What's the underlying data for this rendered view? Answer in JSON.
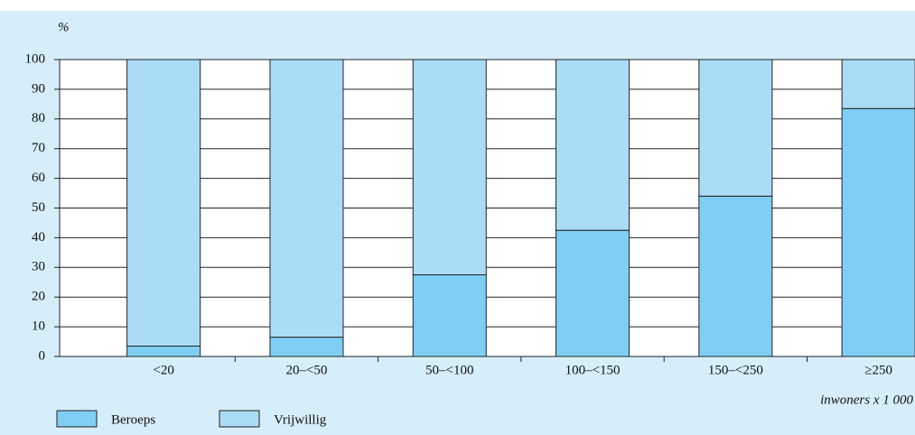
{
  "chart_data": {
    "type": "stacked_bar",
    "y_label": "%",
    "x_label": "inwoners x 1 000",
    "categories": [
      "<20",
      "20–<50",
      "50–<100",
      "100–<150",
      "150–<250",
      "≥250"
    ],
    "series": [
      {
        "name": "Beroeps",
        "color": "#7fcff5",
        "values": [
          3.5,
          6.5,
          27.5,
          42.5,
          54,
          83.5
        ]
      },
      {
        "name": "Vrijwillig",
        "color": "#aadcf7",
        "values": [
          96.5,
          93.5,
          72.5,
          57.5,
          46,
          16.5
        ]
      }
    ],
    "ylim": [
      0,
      100
    ],
    "yticks": [
      0,
      10,
      20,
      30,
      40,
      50,
      60,
      70,
      80,
      90,
      100
    ],
    "grid": true
  }
}
